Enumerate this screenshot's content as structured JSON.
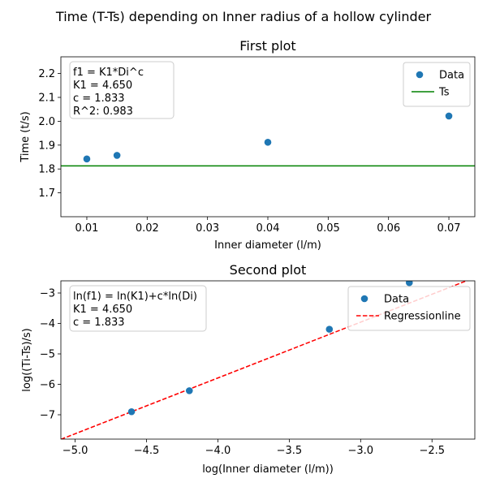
{
  "figure": {
    "suptitle": "Time (T-Ts) depending on Inner radius of a hollow cylinder"
  },
  "chart_data": [
    {
      "type": "scatter",
      "title": "First plot",
      "xlabel": "Inner diameter (l/m)",
      "ylabel": "Time (t/s)",
      "xlim": [
        0.0057,
        0.0743
      ],
      "ylim": [
        1.6,
        2.27
      ],
      "xticks": [
        0.01,
        0.02,
        0.03,
        0.04,
        0.05,
        0.06,
        0.07
      ],
      "xtick_labels": [
        "0.01",
        "0.02",
        "0.03",
        "0.04",
        "0.05",
        "0.06",
        "0.07"
      ],
      "yticks": [
        1.7,
        1.8,
        1.9,
        2.0,
        2.1,
        2.2
      ],
      "ytick_labels": [
        "1.7",
        "1.8",
        "1.9",
        "2.0",
        "2.1",
        "2.2"
      ],
      "series": [
        {
          "name": "Data",
          "kind": "scatter",
          "color": "#1f77b4",
          "x": [
            0.01,
            0.015,
            0.04,
            0.07
          ],
          "y": [
            1.842,
            1.857,
            1.912,
            2.022
          ]
        },
        {
          "name": "Ts",
          "kind": "hline",
          "color": "#008000",
          "y": 1.813
        }
      ],
      "annotation": [
        "f1 = K1*Di^c",
        "K1 = 4.650",
        "c = 1.833",
        "R^2: 0.983"
      ],
      "legend": "top-right",
      "grid": false
    },
    {
      "type": "scatter",
      "title": "Second plot",
      "xlabel": "log(Inner diameter (l/m))",
      "ylabel": "log((Ti-Ts)/s)",
      "xlim": [
        -5.1,
        -2.2
      ],
      "ylim": [
        -7.8,
        -2.6
      ],
      "xticks": [
        -5.0,
        -4.5,
        -4.0,
        -3.5,
        -3.0,
        -2.5
      ],
      "xtick_labels": [
        "−5.0",
        "−4.5",
        "−4.0",
        "−3.5",
        "−3.0",
        "−2.5"
      ],
      "yticks": [
        -7,
        -6,
        -5,
        -4,
        -3
      ],
      "ytick_labels": [
        "−7",
        "−6",
        "−5",
        "−4",
        "−3"
      ],
      "series": [
        {
          "name": "Data",
          "kind": "scatter",
          "color": "#1f77b4",
          "x": [
            -4.605,
            -4.2,
            -3.219,
            -2.659
          ],
          "y": [
            -6.9,
            -6.21,
            -4.19,
            -2.66
          ]
        },
        {
          "name": "Regressionline",
          "kind": "line",
          "color": "#ff0000",
          "dash": true,
          "x": [
            -5.1,
            -2.2
          ],
          "y": [
            -7.807,
            -2.492
          ]
        }
      ],
      "annotation": [
        "ln(f1) = ln(K1)+c*ln(Di)",
        "K1 = 4.650",
        "c = 1.833"
      ],
      "legend": "top-right",
      "grid": false
    }
  ]
}
